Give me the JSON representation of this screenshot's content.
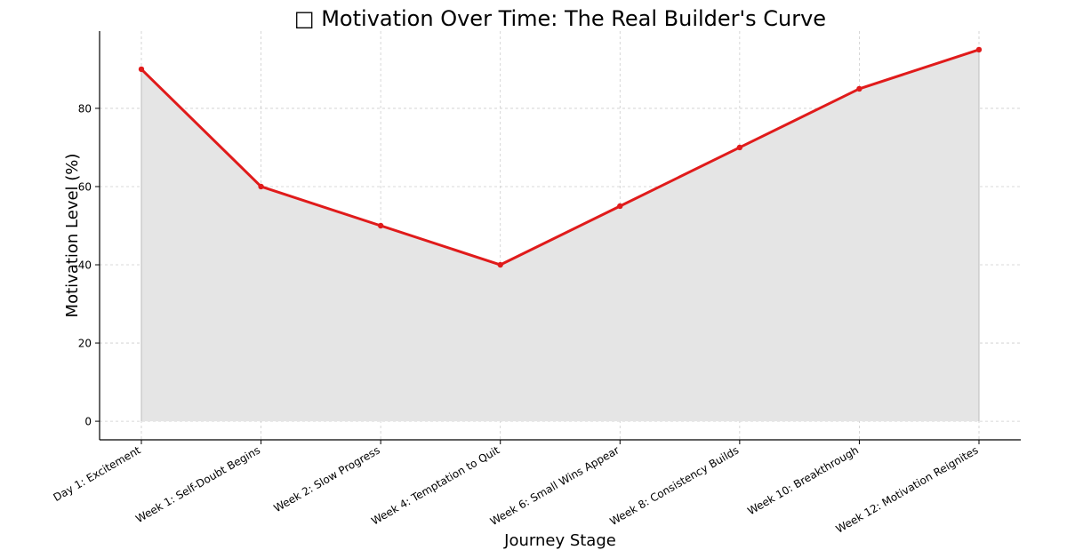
{
  "chart_data": {
    "type": "area",
    "title": "□ Motivation Over Time: The Real Builder's Curve",
    "xlabel": "Journey Stage",
    "ylabel": "Motivation Level (%)",
    "categories": [
      "Day 1: Excitement",
      "Week 1: Self-Doubt Begins",
      "Week 2: Slow Progress",
      "Week 4: Temptation to Quit",
      "Week 6: Small Wins Appear",
      "Week 8: Consistency Builds",
      "Week 10: Breakthrough",
      "Week 12: Motivation Reignites"
    ],
    "values": [
      90,
      60,
      50,
      40,
      55,
      70,
      85,
      95
    ],
    "ylim": [
      -4.75,
      99.75
    ],
    "yticks": [
      0,
      20,
      40,
      60,
      80
    ],
    "grid": true,
    "colors": {
      "line": "#e01b1b",
      "fill": "#e5e5e5",
      "grid": "#cccccc"
    }
  }
}
